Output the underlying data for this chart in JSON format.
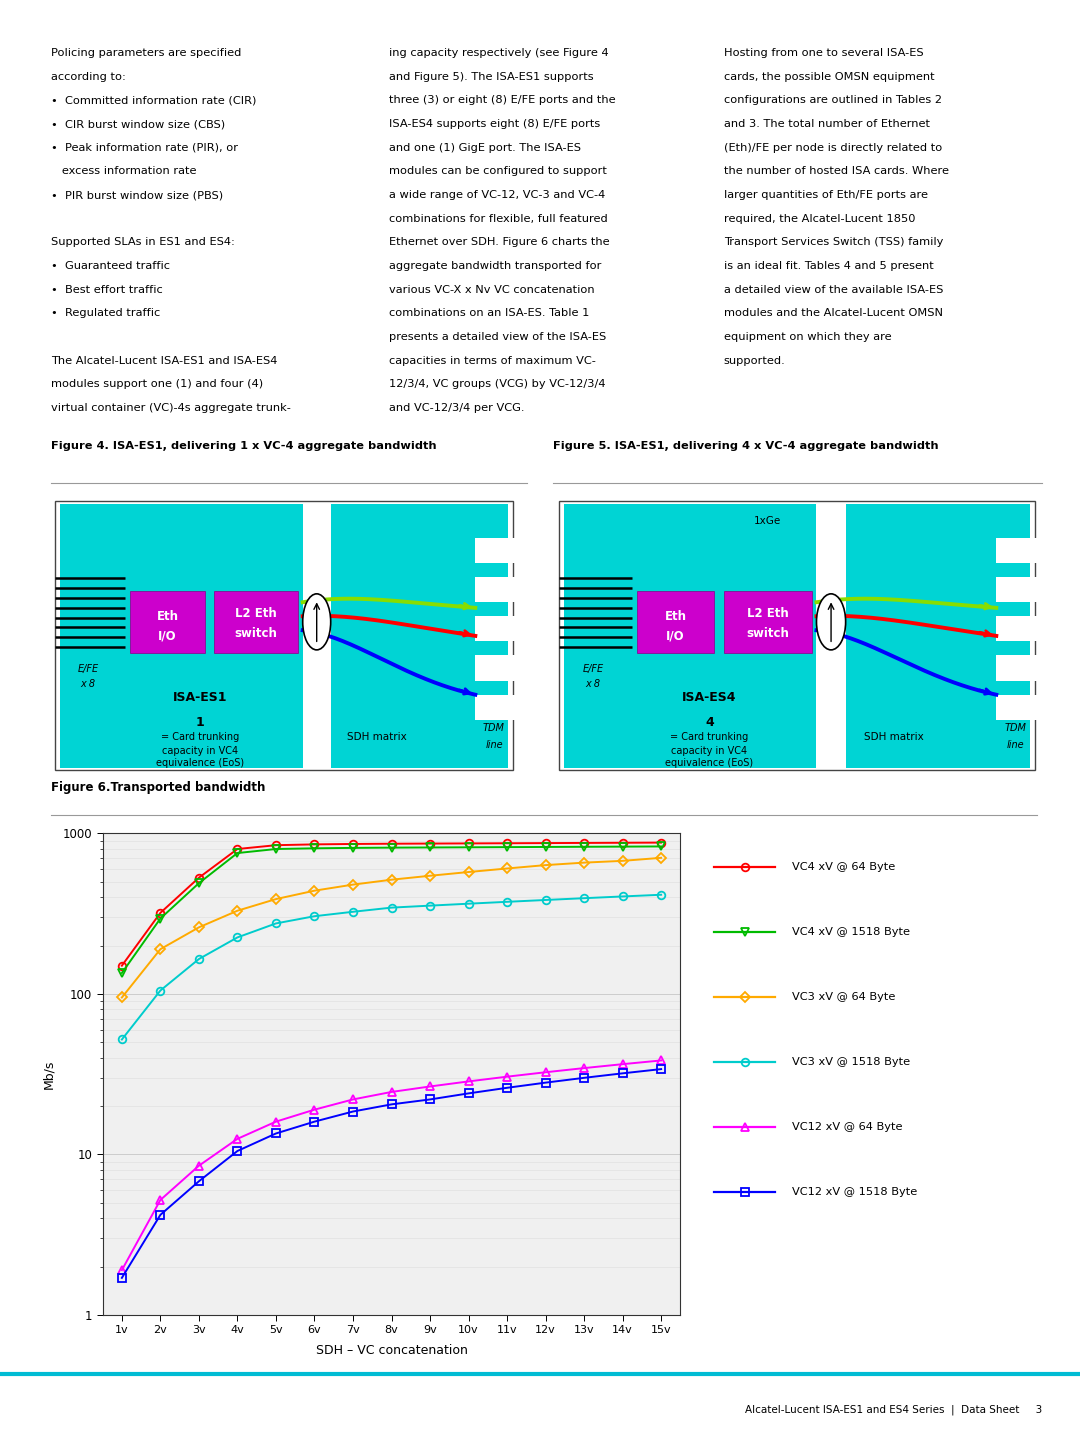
{
  "page_bg": "#ffffff",
  "col1_text": [
    "Policing parameters are specified",
    "according to:",
    "•  Committed information rate (CIR)",
    "•  CIR burst window size (CBS)",
    "•  Peak information rate (PIR), or",
    "   excess information rate",
    "•  PIR burst window size (PBS)",
    "",
    "Supported SLAs in ES1 and ES4:",
    "•  Guaranteed traffic",
    "•  Best effort traffic",
    "•  Regulated traffic",
    "",
    "The Alcatel-Lucent ISA-ES1 and ISA-ES4",
    "modules support one (1) and four (4)",
    "virtual container (VC)-4s aggregate trunk-"
  ],
  "col2_text": [
    "ing capacity respectively (see Figure 4",
    "and Figure 5). The ISA-ES1 supports",
    "three (3) or eight (8) E/FE ports and the",
    "ISA-ES4 supports eight (8) E/FE ports",
    "and one (1) GigE port. The ISA-ES",
    "modules can be configured to support",
    "a wide range of VC-12, VC-3 and VC-4",
    "combinations for flexible, full featured",
    "Ethernet over SDH. Figure 6 charts the",
    "aggregate bandwidth transported for",
    "various VC-X x Nv VC concatenation",
    "combinations on an ISA-ES. Table 1",
    "presents a detailed view of the ISA-ES",
    "capacities in terms of maximum VC-",
    "12/3/4, VC groups (VCG) by VC-12/3/4",
    "and VC-12/3/4 per VCG."
  ],
  "col3_text": [
    "Hosting from one to several ISA-ES",
    "cards, the possible OMSN equipment",
    "configurations are outlined in Tables 2",
    "and 3. The total number of Ethernet",
    "(Eth)/FE per node is directly related to",
    "the number of hosted ISA cards. Where",
    "larger quantities of Eth/FE ports are",
    "required, the Alcatel-Lucent 1850",
    "Transport Services Switch (TSS) family",
    "is an ideal fit. Tables 4 and 5 present",
    "a detailed view of the available ISA-ES",
    "modules and the Alcatel-Lucent OMSN",
    "equipment on which they are",
    "supported."
  ],
  "fig4_title": "Figure 4. ISA-ES1, delivering 1 x VC-4 aggregate bandwidth",
  "fig5_title": "Figure 5. ISA-ES1, delivering 4 x VC-4 aggregate bandwidth",
  "fig6_title": "Figure 6.Transported bandwidth",
  "chart_xlabel": "SDH – VC concatenation",
  "chart_ylabel": "Mb/s",
  "chart_xticks": [
    "1v",
    "2v",
    "3v",
    "4v",
    "5v",
    "6v",
    "7v",
    "8v",
    "9v",
    "10v",
    "11v",
    "12v",
    "13v",
    "14v",
    "15v"
  ],
  "series": {
    "VC4_64": {
      "label": "VC4 xV @ 64 Byte",
      "color": "#ff0000",
      "marker": "o",
      "values": [
        150,
        320,
        530,
        800,
        845,
        855,
        860,
        863,
        865,
        867,
        869,
        871,
        873,
        875,
        877
      ]
    },
    "VC4_1518": {
      "label": "VC4 xV @ 1518 Byte",
      "color": "#00bb00",
      "marker": "v",
      "values": [
        135,
        295,
        490,
        755,
        800,
        808,
        813,
        816,
        818,
        820,
        822,
        824,
        826,
        828,
        830
      ]
    },
    "VC3_64": {
      "label": "VC3 xV @ 64 Byte",
      "color": "#ffaa00",
      "marker": "D",
      "values": [
        95,
        190,
        260,
        330,
        390,
        440,
        480,
        515,
        545,
        575,
        605,
        635,
        658,
        675,
        705
      ]
    },
    "VC3_1518": {
      "label": "VC3 xV @ 1518 Byte",
      "color": "#00cccc",
      "marker": "o",
      "values": [
        52,
        105,
        165,
        225,
        275,
        305,
        325,
        345,
        355,
        365,
        375,
        385,
        395,
        405,
        415
      ]
    },
    "VC12_64": {
      "label": "VC12 xV @ 64 Byte",
      "color": "#ff00ff",
      "marker": "^",
      "values": [
        1.9,
        5.2,
        8.5,
        12.5,
        16,
        19,
        22,
        24.5,
        26.5,
        28.5,
        30.5,
        32.5,
        34.5,
        36.5,
        38.5
      ]
    },
    "VC12_1518": {
      "label": "VC12 xV @ 1518 Byte",
      "color": "#0000ff",
      "marker": "s",
      "values": [
        1.7,
        4.2,
        6.8,
        10.5,
        13.5,
        16,
        18.5,
        20.5,
        22,
        24,
        26,
        28,
        30,
        32,
        34
      ]
    }
  },
  "footer_text": "Alcatel-Lucent ISA-ES1 and ES4 Series  |  Data Sheet     3",
  "footer_line_color": "#00bcd4"
}
